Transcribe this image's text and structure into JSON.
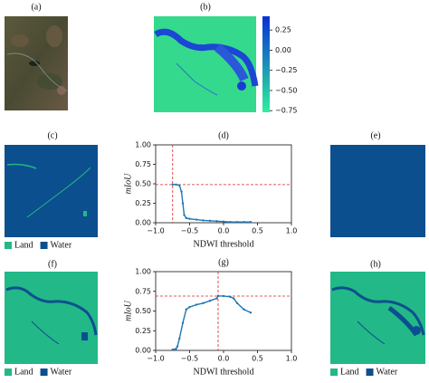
{
  "panel_labels": [
    "(a)",
    "(b)",
    "(c)",
    "(e)",
    "(f)",
    "(h)"
  ],
  "legend": {
    "items": [
      {
        "name": "Land",
        "color": "#22b887"
      },
      {
        "name": "Water",
        "color": "#0c4f8e"
      }
    ]
  },
  "chart_data": [
    {
      "type": "colorbar",
      "colors": [
        "#2ef09c",
        "#0a2fd6"
      ],
      "ylim": [
        -0.77,
        0.42
      ],
      "yticks": [
        0.25,
        {
          "value": 0,
          "label": "0.00"
        },
        {
          "value": -0.25,
          "label": "−0.25"
        },
        {
          "value": -0.5,
          "label": "−0.50"
        },
        {
          "value": -0.75,
          "label": "−0.75"
        }
      ]
    },
    {
      "type": "line",
      "title": "(d)",
      "xlabel": "NDWI threshold",
      "ylabel": "mIoU",
      "color": "#1f77b4",
      "x": [
        -0.75,
        -0.7,
        -0.65,
        -0.62,
        -0.6,
        -0.58,
        -0.55,
        -0.5,
        -0.4,
        -0.3,
        -0.2,
        -0.1,
        0,
        0.1,
        0.2,
        0.3,
        0.4
      ],
      "values": [
        0.49,
        0.49,
        0.48,
        0.4,
        0.25,
        0.1,
        0.06,
        0.05,
        0.04,
        0.03,
        0.025,
        0.02,
        0.015,
        0.01,
        0.01,
        0.01,
        0.01
      ],
      "xlim": [
        -1,
        1
      ],
      "ylim": [
        0,
        1
      ],
      "xticks": [
        {
          "value": -1,
          "label": "−1.0"
        },
        {
          "value": -0.5,
          "label": "−0.5"
        },
        {
          "value": 0,
          "label": "0.0"
        },
        0.5,
        {
          "value": 1,
          "label": "1.0"
        }
      ],
      "yticks": [
        {
          "value": 0,
          "label": "0.00"
        },
        0.25,
        {
          "value": 0.5,
          "label": "0.50"
        },
        0.75,
        {
          "value": 1,
          "label": "1.00"
        }
      ],
      "reference": {
        "x": -0.75,
        "y": 0.49,
        "color": "#d62728"
      }
    },
    {
      "type": "line",
      "title": "(g)",
      "xlabel": "NDWI threshold",
      "ylabel": "mIoU",
      "color": "#1f77b4",
      "x": [
        -0.75,
        -0.7,
        -0.68,
        -0.65,
        -0.6,
        -0.55,
        -0.5,
        -0.4,
        -0.3,
        -0.2,
        -0.1,
        -0.08,
        0,
        0.1,
        0.15,
        0.2,
        0.3,
        0.4
      ],
      "values": [
        0.01,
        0.02,
        0.05,
        0.15,
        0.35,
        0.52,
        0.55,
        0.58,
        0.6,
        0.63,
        0.66,
        0.69,
        0.69,
        0.68,
        0.66,
        0.6,
        0.52,
        0.48
      ],
      "xlim": [
        -1,
        1
      ],
      "ylim": [
        0,
        1
      ],
      "xticks": [
        {
          "value": -1,
          "label": "−1.0"
        },
        {
          "value": -0.5,
          "label": "−0.5"
        },
        {
          "value": 0,
          "label": "0.0"
        },
        0.5,
        {
          "value": 1,
          "label": "1.0"
        }
      ],
      "yticks": [
        {
          "value": 0,
          "label": "0.00"
        },
        0.25,
        {
          "value": 0.5,
          "label": "0.50"
        },
        0.75,
        {
          "value": 1,
          "label": "1.00"
        }
      ],
      "reference": {
        "x": -0.08,
        "y": 0.69,
        "color": "#d62728"
      }
    }
  ]
}
